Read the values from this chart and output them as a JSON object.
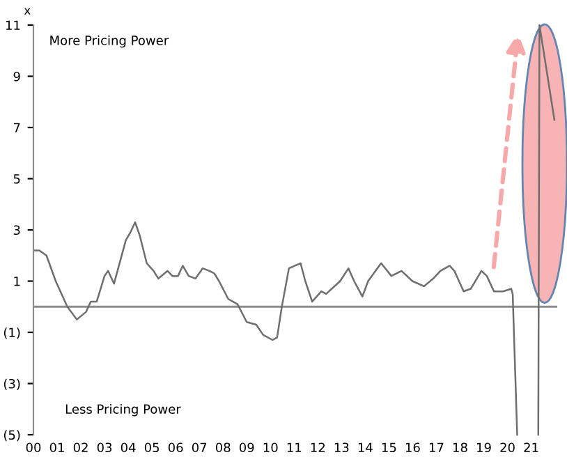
{
  "chart_data": {
    "type": "line",
    "ylabel": "x",
    "annotations": [
      "More Pricing Power",
      "Less Pricing Power"
    ],
    "series": [
      {
        "color": "#6e6e6e",
        "x": [
          0.06,
          0.25,
          0.55,
          0.94,
          1.43,
          1.83,
          2.22,
          2.42,
          2.67,
          3.0,
          3.15,
          3.4,
          3.9,
          4.09,
          4.29,
          4.48,
          4.78,
          5.07,
          5.27,
          5.66,
          5.86,
          6.1,
          6.3,
          6.55,
          6.84,
          7.14,
          7.43,
          7.63,
          7.83,
          8.22,
          8.61,
          9.0,
          9.4,
          9.69,
          10.09,
          10.28,
          10.48,
          10.78,
          11.27,
          11.47,
          11.76,
          12.15,
          12.35,
          12.94,
          13.29,
          13.53,
          13.88,
          14.12,
          14.67,
          15.1,
          15.53,
          15.99,
          16.48,
          16.87,
          17.17,
          17.56,
          17.76,
          18.15,
          18.45,
          18.9,
          19.13,
          19.43,
          19.82,
          20.16,
          20.22,
          20.41,
          20.9,
          21.3,
          21.35,
          21.98
        ],
        "values": [
          2.2,
          2.2,
          2.0,
          1.0,
          0.0,
          -0.5,
          -0.2,
          0.2,
          0.2,
          1.2,
          1.4,
          0.9,
          2.6,
          2.9,
          3.3,
          2.8,
          1.7,
          1.4,
          1.1,
          1.4,
          1.2,
          1.2,
          1.6,
          1.2,
          1.1,
          1.5,
          1.4,
          1.3,
          1.0,
          0.3,
          0.1,
          -0.6,
          -0.7,
          -1.1,
          -1.3,
          -1.2,
          0.0,
          1.5,
          1.7,
          1.0,
          0.2,
          0.6,
          0.5,
          1.0,
          1.5,
          1.0,
          0.4,
          1.0,
          1.7,
          1.2,
          1.4,
          1.0,
          0.8,
          1.1,
          1.4,
          1.6,
          1.4,
          0.6,
          0.7,
          1.4,
          1.2,
          0.6,
          0.6,
          0.7,
          0.5,
          -5.0,
          null,
          -5.0,
          11.0,
          7.3
        ]
      }
    ],
    "xlim": [
      0,
      22.1
    ],
    "ylim": [
      -5,
      11
    ],
    "xticks": [
      {
        "value": 0,
        "label": "00"
      },
      {
        "value": 1,
        "label": "01"
      },
      {
        "value": 2,
        "label": "02"
      },
      {
        "value": 3,
        "label": "03"
      },
      {
        "value": 4,
        "label": "04"
      },
      {
        "value": 5,
        "label": "05"
      },
      {
        "value": 6,
        "label": "06"
      },
      {
        "value": 7,
        "label": "07"
      },
      {
        "value": 8,
        "label": "08"
      },
      {
        "value": 9,
        "label": "09"
      },
      {
        "value": 10,
        "label": "10"
      },
      {
        "value": 11,
        "label": "11"
      },
      {
        "value": 12,
        "label": "12"
      },
      {
        "value": 13,
        "label": "13"
      },
      {
        "value": 14,
        "label": "14"
      },
      {
        "value": 15,
        "label": "15"
      },
      {
        "value": 16,
        "label": "16"
      },
      {
        "value": 17,
        "label": "17"
      },
      {
        "value": 18,
        "label": "18"
      },
      {
        "value": 19,
        "label": "19"
      },
      {
        "value": 20,
        "label": "20"
      },
      {
        "value": 21,
        "label": "21"
      }
    ],
    "yticks": [
      {
        "value": -5,
        "label": "(5)"
      },
      {
        "value": -3,
        "label": "(3)"
      },
      {
        "value": -1,
        "label": "(1)"
      },
      1,
      3,
      5,
      7,
      9,
      11
    ],
    "ref_lines": [
      {
        "axis": "y",
        "value": 0,
        "color": "#8c8c8c"
      }
    ],
    "grid": false,
    "legend": false,
    "marker": "none",
    "line_style": "solid"
  }
}
